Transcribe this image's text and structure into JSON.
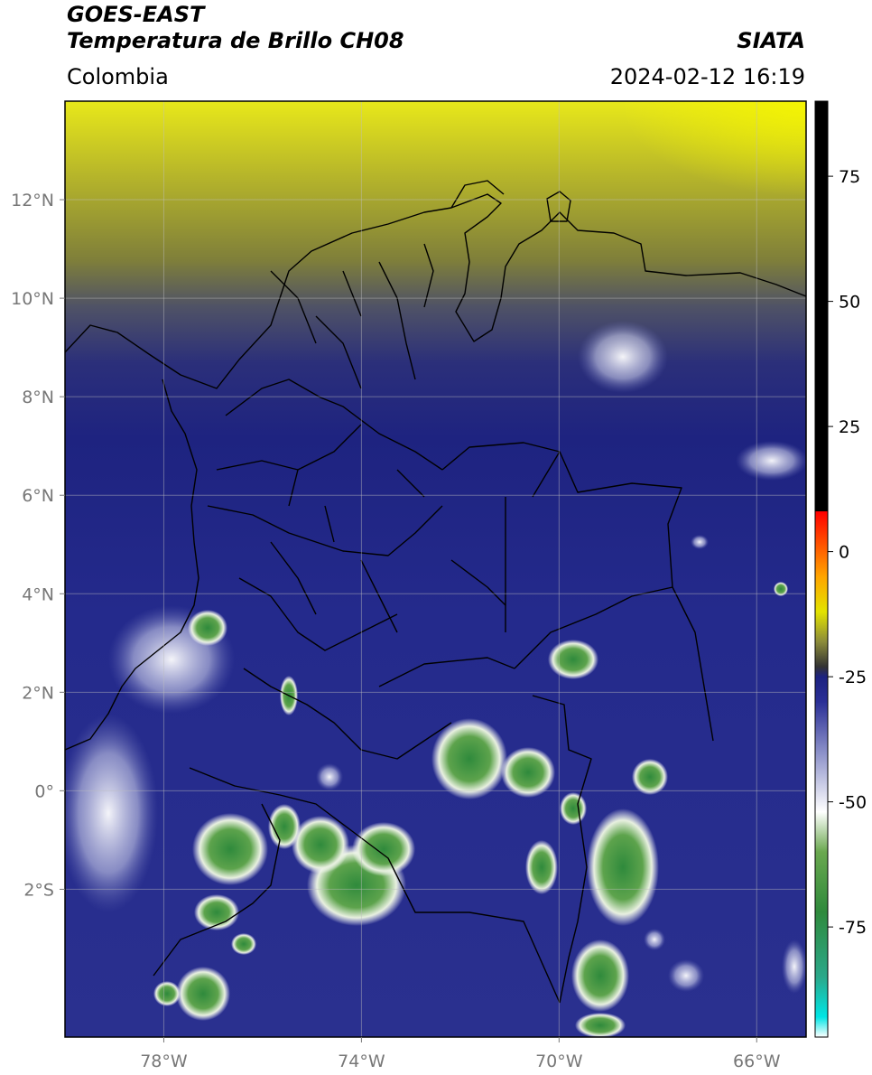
{
  "header": {
    "satellite": "GOES-EAST",
    "product": "Temperatura de Brillo CH08",
    "organization": "SIATA",
    "region": "Colombia",
    "timestamp": "2024-02-12 16:19"
  },
  "map": {
    "lon_range": [
      -80,
      -65
    ],
    "lat_range": [
      -5,
      14
    ],
    "lon_ticks": [
      {
        "value": -78,
        "label": "78°W"
      },
      {
        "value": -74,
        "label": "74°W"
      },
      {
        "value": -70,
        "label": "70°W"
      },
      {
        "value": -66,
        "label": "66°W"
      }
    ],
    "lat_ticks": [
      {
        "value": 12,
        "label": "12°N"
      },
      {
        "value": 10,
        "label": "10°N"
      },
      {
        "value": 8,
        "label": "8°N"
      },
      {
        "value": 6,
        "label": "6°N"
      },
      {
        "value": 4,
        "label": "4°N"
      },
      {
        "value": 2,
        "label": "2°N"
      },
      {
        "value": 0,
        "label": "0°"
      },
      {
        "value": -2,
        "label": "2°S"
      }
    ],
    "grid": true
  },
  "colorbar": {
    "range": [
      -97,
      90
    ],
    "ticks": [
      {
        "value": 75,
        "label": "75"
      },
      {
        "value": 50,
        "label": "50"
      },
      {
        "value": 25,
        "label": "25"
      },
      {
        "value": 0,
        "label": "0"
      },
      {
        "value": -25,
        "label": "-25"
      },
      {
        "value": -50,
        "label": "-50"
      },
      {
        "value": -75,
        "label": "-75"
      }
    ],
    "stops": [
      {
        "value": -97,
        "color": "#ffffff"
      },
      {
        "value": -93,
        "color": "#00e5e5"
      },
      {
        "value": -85,
        "color": "#2ba88a"
      },
      {
        "value": -72,
        "color": "#2f8a3c"
      },
      {
        "value": -60,
        "color": "#6aa84f"
      },
      {
        "value": -52,
        "color": "#ffffff"
      },
      {
        "value": -40,
        "color": "#8a8fc8"
      },
      {
        "value": -30,
        "color": "#2a2f96"
      },
      {
        "value": -25,
        "color": "#1c2280"
      },
      {
        "value": -23,
        "color": "#333333"
      },
      {
        "value": -18,
        "color": "#8c8c3a"
      },
      {
        "value": -12,
        "color": "#e3e300"
      },
      {
        "value": -5,
        "color": "#ffa500"
      },
      {
        "value": 8,
        "color": "#ff0000"
      },
      {
        "value": 8.1,
        "color": "#000000"
      },
      {
        "value": 90,
        "color": "#000000"
      }
    ]
  }
}
